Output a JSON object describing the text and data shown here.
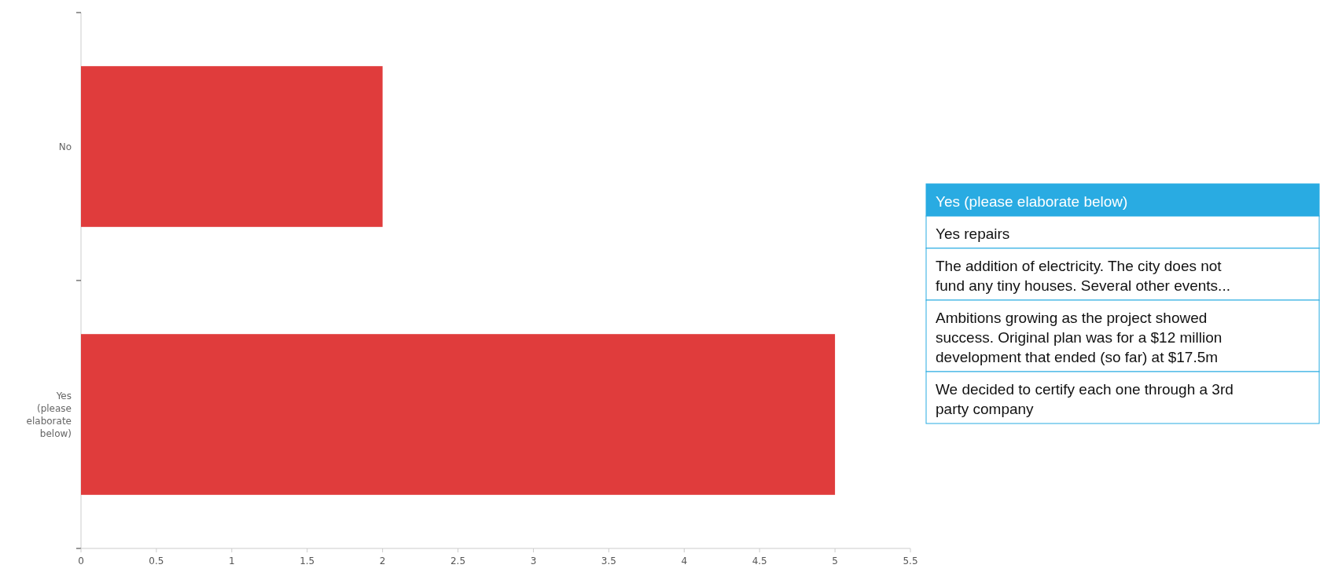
{
  "chart_data": [
    {
      "type": "bar",
      "orientation": "horizontal",
      "categories": [
        "No",
        "Yes (please elaborate below)"
      ],
      "values": [
        2,
        5
      ],
      "color": "#e03c3c",
      "xlim": [
        0,
        5.5
      ],
      "xticks": [
        0,
        0.5,
        1,
        1.5,
        2,
        2.5,
        3,
        3.5,
        4,
        4.5,
        5,
        5.5
      ]
    },
    {
      "type": "other",
      "title": "Yes (please elaborate below)",
      "annotations": [
        "Yes repairs",
        "The addition of electricity. The city does not fund any tiny houses. Several other events...",
        "Ambitions growing as the project showed success.  Original plan was for a $12 million development that ended (so far) at $17.5m",
        "We decided to certify each one through a 3rd party company"
      ]
    }
  ]
}
